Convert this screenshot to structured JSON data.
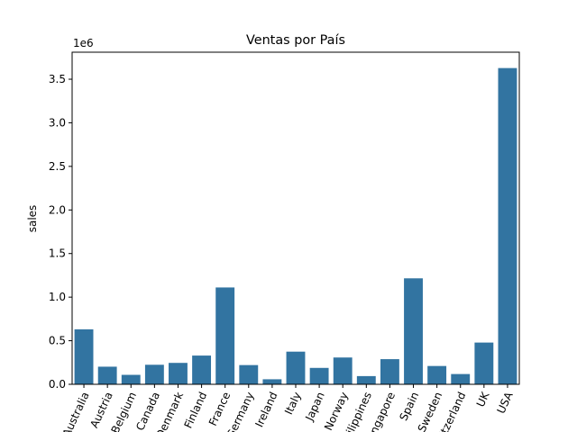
{
  "chart_data": {
    "type": "bar",
    "title": "Ventas por País",
    "xlabel": "",
    "ylabel": "sales",
    "offset_label": "1e6",
    "categories": [
      "Australia",
      "Austria",
      "Belgium",
      "Canada",
      "Denmark",
      "Finland",
      "France",
      "Germany",
      "Ireland",
      "Italy",
      "Japan",
      "Norway",
      "Philippines",
      "Singapore",
      "Spain",
      "Sweden",
      "Switzerland",
      "UK",
      "USA"
    ],
    "values": [
      630623,
      202062,
      108412,
      224079,
      245637,
      329582,
      1110916,
      220472,
      57756,
      374674,
      188168,
      307464,
      94016,
      288488,
      1215687,
      210014,
      117714,
      478880,
      3627983
    ],
    "ylim": [
      0,
      3810000
    ],
    "yticks": [
      0,
      500000,
      1000000,
      1500000,
      2000000,
      2500000,
      3000000,
      3500000
    ],
    "ytick_labels": [
      "0.0",
      "0.5",
      "1.0",
      "1.5",
      "2.0",
      "2.5",
      "3.0",
      "3.5"
    ],
    "bar_color": "#3274a1",
    "grid": false,
    "legend": "none"
  }
}
